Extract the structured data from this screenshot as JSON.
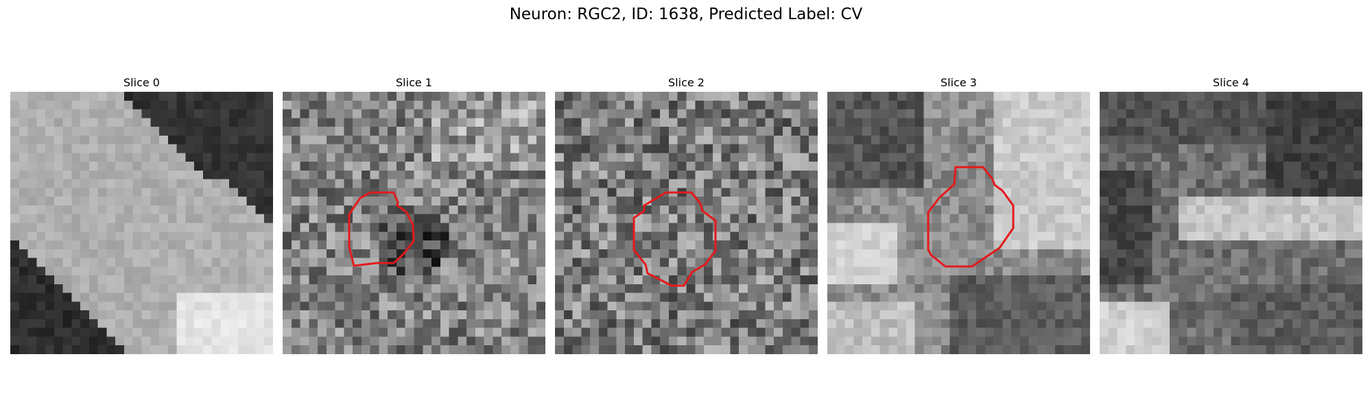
{
  "figure": {
    "title": "Neuron: RGC2, ID: 1638, Predicted Label: CV"
  },
  "panels": [
    {
      "title": "Slice 0",
      "has_contour": false,
      "contour_color": "#e31a1c"
    },
    {
      "title": "Slice 1",
      "has_contour": true,
      "contour_color": "#e31a1c"
    },
    {
      "title": "Slice 2",
      "has_contour": true,
      "contour_color": "#e31a1c"
    },
    {
      "title": "Slice 3",
      "has_contour": true,
      "contour_color": "#e31a1c"
    },
    {
      "title": "Slice 4",
      "has_contour": false,
      "contour_color": "#e31a1c"
    }
  ],
  "colormap": "gray"
}
